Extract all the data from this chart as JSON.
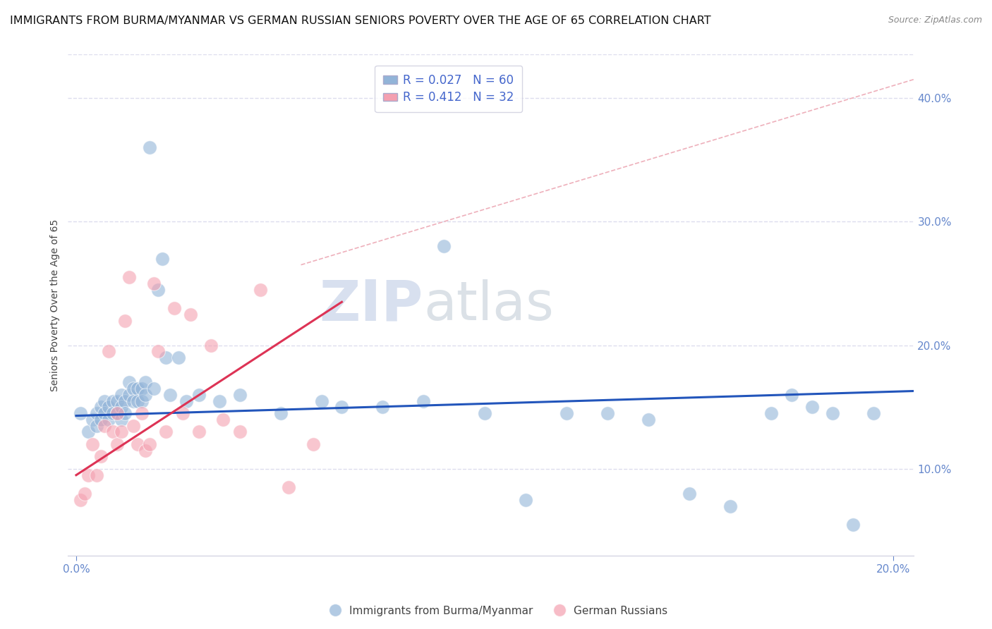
{
  "title": "IMMIGRANTS FROM BURMA/MYANMAR VS GERMAN RUSSIAN SENIORS POVERTY OVER THE AGE OF 65 CORRELATION CHART",
  "source": "Source: ZipAtlas.com",
  "ylabel": "Seniors Poverty Over the Age of 65",
  "xlabel": "",
  "xlim": [
    -0.002,
    0.205
  ],
  "ylim": [
    0.03,
    0.435
  ],
  "xticks": [
    0.0,
    0.05,
    0.1,
    0.15,
    0.2
  ],
  "yticks": [
    0.1,
    0.2,
    0.3,
    0.4
  ],
  "xtick_labels": [
    "0.0%",
    "",
    "",
    "",
    "20.0%"
  ],
  "ytick_labels": [
    "10.0%",
    "20.0%",
    "30.0%",
    "40.0%"
  ],
  "blue_R": 0.027,
  "blue_N": 60,
  "pink_R": 0.412,
  "pink_N": 32,
  "blue_color": "#92B4D8",
  "pink_color": "#F4A0B0",
  "blue_trend_color": "#2255BB",
  "pink_trend_color": "#DD3355",
  "blue_label": "Immigrants from Burma/Myanmar",
  "pink_label": "German Russians",
  "watermark": "ZIPatlas",
  "watermark_color_zip": "#AABBDD",
  "watermark_color_atlas": "#AABBCC",
  "blue_scatter_x": [
    0.001,
    0.003,
    0.004,
    0.005,
    0.005,
    0.006,
    0.006,
    0.007,
    0.007,
    0.008,
    0.008,
    0.009,
    0.009,
    0.01,
    0.01,
    0.011,
    0.011,
    0.011,
    0.012,
    0.012,
    0.013,
    0.013,
    0.014,
    0.014,
    0.015,
    0.015,
    0.016,
    0.016,
    0.017,
    0.017,
    0.018,
    0.019,
    0.02,
    0.021,
    0.022,
    0.023,
    0.025,
    0.027,
    0.03,
    0.035,
    0.04,
    0.05,
    0.06,
    0.065,
    0.075,
    0.085,
    0.09,
    0.1,
    0.11,
    0.12,
    0.13,
    0.14,
    0.15,
    0.16,
    0.17,
    0.175,
    0.18,
    0.185,
    0.19,
    0.195
  ],
  "blue_scatter_y": [
    0.145,
    0.13,
    0.14,
    0.145,
    0.135,
    0.15,
    0.14,
    0.155,
    0.145,
    0.15,
    0.14,
    0.155,
    0.145,
    0.155,
    0.145,
    0.16,
    0.15,
    0.14,
    0.155,
    0.145,
    0.17,
    0.16,
    0.165,
    0.155,
    0.165,
    0.155,
    0.165,
    0.155,
    0.17,
    0.16,
    0.36,
    0.165,
    0.245,
    0.27,
    0.19,
    0.16,
    0.19,
    0.155,
    0.16,
    0.155,
    0.16,
    0.145,
    0.155,
    0.15,
    0.15,
    0.155,
    0.28,
    0.145,
    0.075,
    0.145,
    0.145,
    0.14,
    0.08,
    0.07,
    0.145,
    0.16,
    0.15,
    0.145,
    0.055,
    0.145
  ],
  "pink_scatter_x": [
    0.001,
    0.002,
    0.003,
    0.004,
    0.005,
    0.006,
    0.007,
    0.008,
    0.009,
    0.01,
    0.01,
    0.011,
    0.012,
    0.013,
    0.014,
    0.015,
    0.016,
    0.017,
    0.018,
    0.019,
    0.02,
    0.022,
    0.024,
    0.026,
    0.028,
    0.03,
    0.033,
    0.036,
    0.04,
    0.045,
    0.052,
    0.058
  ],
  "pink_scatter_y": [
    0.075,
    0.08,
    0.095,
    0.12,
    0.095,
    0.11,
    0.135,
    0.195,
    0.13,
    0.145,
    0.12,
    0.13,
    0.22,
    0.255,
    0.135,
    0.12,
    0.145,
    0.115,
    0.12,
    0.25,
    0.195,
    0.13,
    0.23,
    0.145,
    0.225,
    0.13,
    0.2,
    0.14,
    0.13,
    0.245,
    0.085,
    0.12
  ],
  "blue_trend_x": [
    0.0,
    0.205
  ],
  "blue_trend_y": [
    0.143,
    0.163
  ],
  "pink_trend_x": [
    0.0,
    0.065
  ],
  "pink_trend_y": [
    0.095,
    0.235
  ],
  "ref_line_x": [
    0.055,
    0.205
  ],
  "ref_line_y": [
    0.265,
    0.415
  ],
  "background_color": "#FFFFFF",
  "grid_color": "#DDDDEE",
  "tick_color": "#6688CC",
  "ylabel_color": "#444444",
  "title_fontsize": 11.5,
  "label_fontsize": 10,
  "tick_fontsize": 11,
  "legend_fontsize": 12
}
